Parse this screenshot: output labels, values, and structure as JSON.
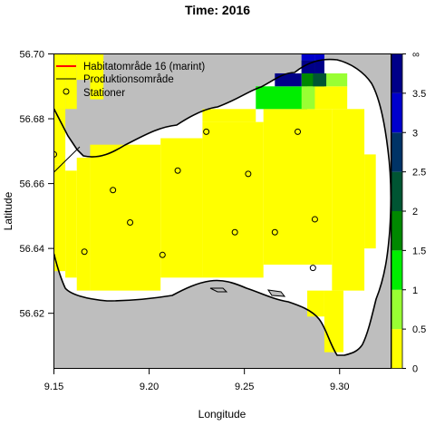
{
  "chart_data": {
    "type": "heatmap",
    "title": "Time: 2016",
    "xlabel": "Longitude",
    "ylabel": "Latitude",
    "xlim": [
      9.15,
      9.327
    ],
    "ylim": [
      56.603,
      56.7
    ],
    "xticks": [
      {
        "value": 9.15,
        "label": "9.15"
      },
      {
        "value": 9.2,
        "label": "9.20"
      },
      {
        "value": 9.25,
        "label": "9.25"
      },
      {
        "value": 9.3,
        "label": "9.30"
      }
    ],
    "yticks": [
      {
        "value": 56.62,
        "label": "56.62"
      },
      {
        "value": 56.64,
        "label": "56.64"
      },
      {
        "value": 56.66,
        "label": "56.66"
      },
      {
        "value": 56.68,
        "label": "56.68"
      },
      {
        "value": 56.7,
        "label": "56.70"
      }
    ],
    "legend": {
      "position": "top-left",
      "entries": [
        {
          "label": "Habitatområde 16 (marint)",
          "symbol": "line",
          "color": "#ff0000"
        },
        {
          "label": "Produktionsområde",
          "symbol": "line",
          "color": "#000000"
        },
        {
          "label": "Stationer",
          "symbol": "circle",
          "color": "#000000"
        }
      ]
    },
    "colorbar": {
      "breaks": [
        0,
        0.5,
        1,
        1.5,
        2,
        2.5,
        3,
        3.5,
        "∞"
      ],
      "labels": [
        "0",
        "0.5",
        "1",
        "1.5",
        "2",
        "2.5",
        "3",
        "3.5",
        "∞"
      ],
      "colors": [
        "#ffff00",
        "#99ff33",
        "#00ee00",
        "#008800",
        "#005533",
        "#003366",
        "#0000cc",
        "#000088"
      ]
    },
    "land_color": "#bebebe",
    "water_color": "#ffffff",
    "stations": [
      {
        "lon": 9.15,
        "lat": 56.669
      },
      {
        "lon": 9.166,
        "lat": 56.639
      },
      {
        "lon": 9.181,
        "lat": 56.658
      },
      {
        "lon": 9.19,
        "lat": 56.648
      },
      {
        "lon": 9.207,
        "lat": 56.638
      },
      {
        "lon": 9.215,
        "lat": 56.664
      },
      {
        "lon": 9.23,
        "lat": 56.676
      },
      {
        "lon": 9.245,
        "lat": 56.645
      },
      {
        "lon": 9.252,
        "lat": 56.663
      },
      {
        "lon": 9.266,
        "lat": 56.645
      },
      {
        "lon": 9.278,
        "lat": 56.676
      },
      {
        "lon": 9.287,
        "lat": 56.649
      },
      {
        "lon": 9.286,
        "lat": 56.634
      }
    ],
    "cells": [
      {
        "lon0": 9.15,
        "lon1": 9.156,
        "lat0": 56.683,
        "lat1": 56.7,
        "value": 0.2
      },
      {
        "lon0": 9.15,
        "lon1": 9.156,
        "lat0": 56.666,
        "lat1": 56.683,
        "value": 0.2
      },
      {
        "lon0": 9.156,
        "lon1": 9.162,
        "lat0": 56.683,
        "lat1": 56.7,
        "value": 0.2
      },
      {
        "lon0": 9.162,
        "lon1": 9.169,
        "lat0": 56.692,
        "lat1": 56.7,
        "value": 0.2
      },
      {
        "lon0": 9.169,
        "lon1": 9.176,
        "lat0": 56.686,
        "lat1": 56.7,
        "value": 0.2
      },
      {
        "lon0": 9.15,
        "lon1": 9.156,
        "lat0": 56.633,
        "lat1": 56.666,
        "value": 0.2
      },
      {
        "lon0": 9.156,
        "lon1": 9.162,
        "lat0": 56.631,
        "lat1": 56.664,
        "value": 0.2
      },
      {
        "lon0": 9.162,
        "lon1": 9.169,
        "lat0": 56.627,
        "lat1": 56.668,
        "value": 0.2
      },
      {
        "lon0": 9.169,
        "lon1": 9.206,
        "lat0": 56.627,
        "lat1": 56.672,
        "value": 0.2
      },
      {
        "lon0": 9.206,
        "lon1": 9.228,
        "lat0": 56.631,
        "lat1": 56.674,
        "value": 0.2
      },
      {
        "lon0": 9.228,
        "lon1": 9.26,
        "lat0": 56.631,
        "lat1": 56.679,
        "value": 0.2
      },
      {
        "lon0": 9.228,
        "lon1": 9.256,
        "lat0": 56.679,
        "lat1": 56.683,
        "value": 0.2
      },
      {
        "lon0": 9.26,
        "lon1": 9.296,
        "lat0": 56.635,
        "lat1": 56.683,
        "value": 0.2
      },
      {
        "lon0": 9.296,
        "lon1": 9.313,
        "lat0": 56.627,
        "lat1": 56.683,
        "value": 0.2
      },
      {
        "lon0": 9.313,
        "lon1": 9.319,
        "lat0": 56.64,
        "lat1": 56.669,
        "value": 0.2
      },
      {
        "lon0": 9.292,
        "lon1": 9.302,
        "lat0": 56.608,
        "lat1": 56.627,
        "value": 0.2
      },
      {
        "lon0": 9.283,
        "lon1": 9.292,
        "lat0": 56.619,
        "lat1": 56.627,
        "value": 0.2
      },
      {
        "lon0": 9.283,
        "lon1": 9.304,
        "lat0": 56.683,
        "lat1": 56.69,
        "value": 0.2
      },
      {
        "lon0": 9.256,
        "lon1": 9.283,
        "lat0": 56.683,
        "lat1": 56.69,
        "value": 1.3
      },
      {
        "lon0": 9.28,
        "lon1": 9.287,
        "lat0": 56.683,
        "lat1": 56.69,
        "value": 0.8
      },
      {
        "lon0": 9.287,
        "lon1": 9.304,
        "lat0": 56.69,
        "lat1": 56.694,
        "value": 0.8
      },
      {
        "lon0": 9.28,
        "lon1": 9.287,
        "lat0": 56.69,
        "lat1": 56.694,
        "value": 1.8
      },
      {
        "lon0": 9.287,
        "lon1": 9.292,
        "lat0": 56.69,
        "lat1": 56.694,
        "value": 1.8
      },
      {
        "lon0": 9.28,
        "lon1": 9.287,
        "lat0": 56.694,
        "lat1": 56.698,
        "value": 2.1
      },
      {
        "lon0": 9.266,
        "lon1": 9.28,
        "lat0": 56.69,
        "lat1": 56.694,
        "value": 3.8
      },
      {
        "lon0": 9.28,
        "lon1": 9.287,
        "lat0": 56.694,
        "lat1": 56.698,
        "value": 3.9
      },
      {
        "lon0": 9.287,
        "lon1": 9.292,
        "lat0": 56.694,
        "lat1": 56.698,
        "value": 3.8
      },
      {
        "lon0": 9.28,
        "lon1": 9.287,
        "lat0": 56.698,
        "lat1": 56.702,
        "value": 3.0
      },
      {
        "lon0": 9.287,
        "lon1": 9.292,
        "lat0": 56.698,
        "lat1": 56.702,
        "value": 3.0
      },
      {
        "lon0": 9.286,
        "lon1": 9.293,
        "lat0": 56.69,
        "lat1": 56.694,
        "value": 2.2
      }
    ]
  }
}
